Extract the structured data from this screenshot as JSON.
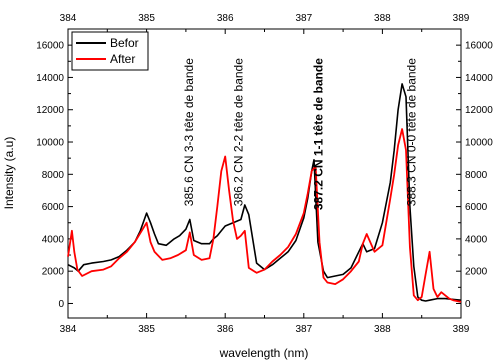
{
  "chart_data": {
    "type": "line",
    "title": "",
    "xlabel": "wavelength (nm)",
    "ylabel": "Intensity (a.u)",
    "xlim": [
      384,
      389
    ],
    "ylim": [
      -900,
      17000
    ],
    "grid": false,
    "legend_position": "top-left",
    "x_ticks": [
      "384",
      "385",
      "386",
      "387",
      "388",
      "389"
    ],
    "y_ticks": [
      "0",
      "2000",
      "4000",
      "6000",
      "8000",
      "10000",
      "12000",
      "14000",
      "16000"
    ],
    "x_tick_values": [
      384,
      385,
      386,
      387,
      388,
      389
    ],
    "y_tick_values": [
      0,
      2000,
      4000,
      6000,
      8000,
      10000,
      12000,
      14000,
      16000
    ],
    "annotations": [
      {
        "text": "385.6 CN 3-3 tête de bande",
        "x": 385.59,
        "y": 15200,
        "bold": false
      },
      {
        "text": "386.2 CN 2-2 tête de bande",
        "x": 386.22,
        "y": 15200,
        "bold": false
      },
      {
        "text": "387.2 CN 1-1 tête de bande",
        "x": 387.24,
        "y": 15200,
        "bold": true
      },
      {
        "text": "388.3 CN 0-0 tête de bande",
        "x": 388.42,
        "y": 15200,
        "bold": false
      }
    ],
    "series": [
      {
        "name": "Befor",
        "color": "#000000",
        "x": [
          384.0,
          384.08,
          384.13,
          384.2,
          384.3,
          384.45,
          384.55,
          384.65,
          384.75,
          384.85,
          384.92,
          385.0,
          385.05,
          385.1,
          385.15,
          385.25,
          385.35,
          385.42,
          385.5,
          385.55,
          385.6,
          385.7,
          385.8,
          385.85,
          385.9,
          385.95,
          386.0,
          386.1,
          386.2,
          386.25,
          386.3,
          386.4,
          386.5,
          386.6,
          386.7,
          386.8,
          386.9,
          387.0,
          387.05,
          387.1,
          387.13,
          387.18,
          387.25,
          387.3,
          387.4,
          387.5,
          387.6,
          387.7,
          387.75,
          387.8,
          387.9,
          388.0,
          388.1,
          388.15,
          388.2,
          388.25,
          388.3,
          388.35,
          388.4,
          388.45,
          388.5,
          388.55,
          388.6,
          388.7,
          388.8,
          388.9,
          389.0
        ],
        "y": [
          2400,
          2200,
          2000,
          2400,
          2500,
          2600,
          2700,
          2900,
          3300,
          3800,
          4500,
          5600,
          5000,
          4300,
          3700,
          3600,
          4000,
          4200,
          4600,
          5200,
          3900,
          3700,
          3700,
          4000,
          4200,
          4500,
          4800,
          5000,
          5200,
          6100,
          5500,
          2500,
          2100,
          2400,
          2800,
          3200,
          3900,
          5300,
          6500,
          8200,
          8900,
          3800,
          2000,
          1600,
          1700,
          1800,
          2200,
          3200,
          3700,
          3200,
          3400,
          5000,
          7500,
          9500,
          12000,
          13600,
          12800,
          6000,
          2300,
          400,
          200,
          150,
          200,
          300,
          300,
          250,
          200
        ]
      },
      {
        "name": "After",
        "color": "#ff0000",
        "x": [
          384.0,
          384.05,
          384.08,
          384.12,
          384.18,
          384.3,
          384.45,
          384.55,
          384.65,
          384.75,
          384.85,
          384.95,
          385.0,
          385.05,
          385.1,
          385.2,
          385.3,
          385.4,
          385.5,
          385.55,
          385.6,
          385.7,
          385.8,
          385.85,
          385.9,
          385.95,
          386.0,
          386.05,
          386.1,
          386.15,
          386.2,
          386.25,
          386.3,
          386.4,
          386.5,
          386.6,
          386.7,
          386.8,
          386.9,
          387.0,
          387.05,
          387.1,
          387.15,
          387.2,
          387.25,
          387.3,
          387.4,
          387.5,
          387.6,
          387.7,
          387.75,
          387.8,
          387.9,
          388.0,
          388.1,
          388.15,
          388.2,
          388.25,
          388.3,
          388.35,
          388.4,
          388.45,
          388.5,
          388.55,
          388.6,
          388.65,
          388.7,
          388.75,
          388.8,
          388.85,
          388.9,
          389.0
        ],
        "y": [
          2900,
          4500,
          3200,
          2100,
          1700,
          2000,
          2100,
          2300,
          2800,
          3200,
          3800,
          4600,
          5000,
          3800,
          3200,
          2700,
          2800,
          3000,
          3300,
          4400,
          3000,
          2700,
          2800,
          4000,
          6000,
          8200,
          9100,
          7000,
          5100,
          4000,
          4200,
          4500,
          2200,
          1900,
          2100,
          2600,
          3000,
          3500,
          4300,
          5600,
          6800,
          8200,
          8500,
          3800,
          1600,
          1300,
          1200,
          1500,
          2000,
          2600,
          3700,
          4300,
          3200,
          3600,
          6500,
          8000,
          9800,
          10800,
          9500,
          3500,
          500,
          200,
          400,
          1800,
          3200,
          900,
          400,
          700,
          500,
          300,
          200,
          100
        ]
      }
    ]
  }
}
